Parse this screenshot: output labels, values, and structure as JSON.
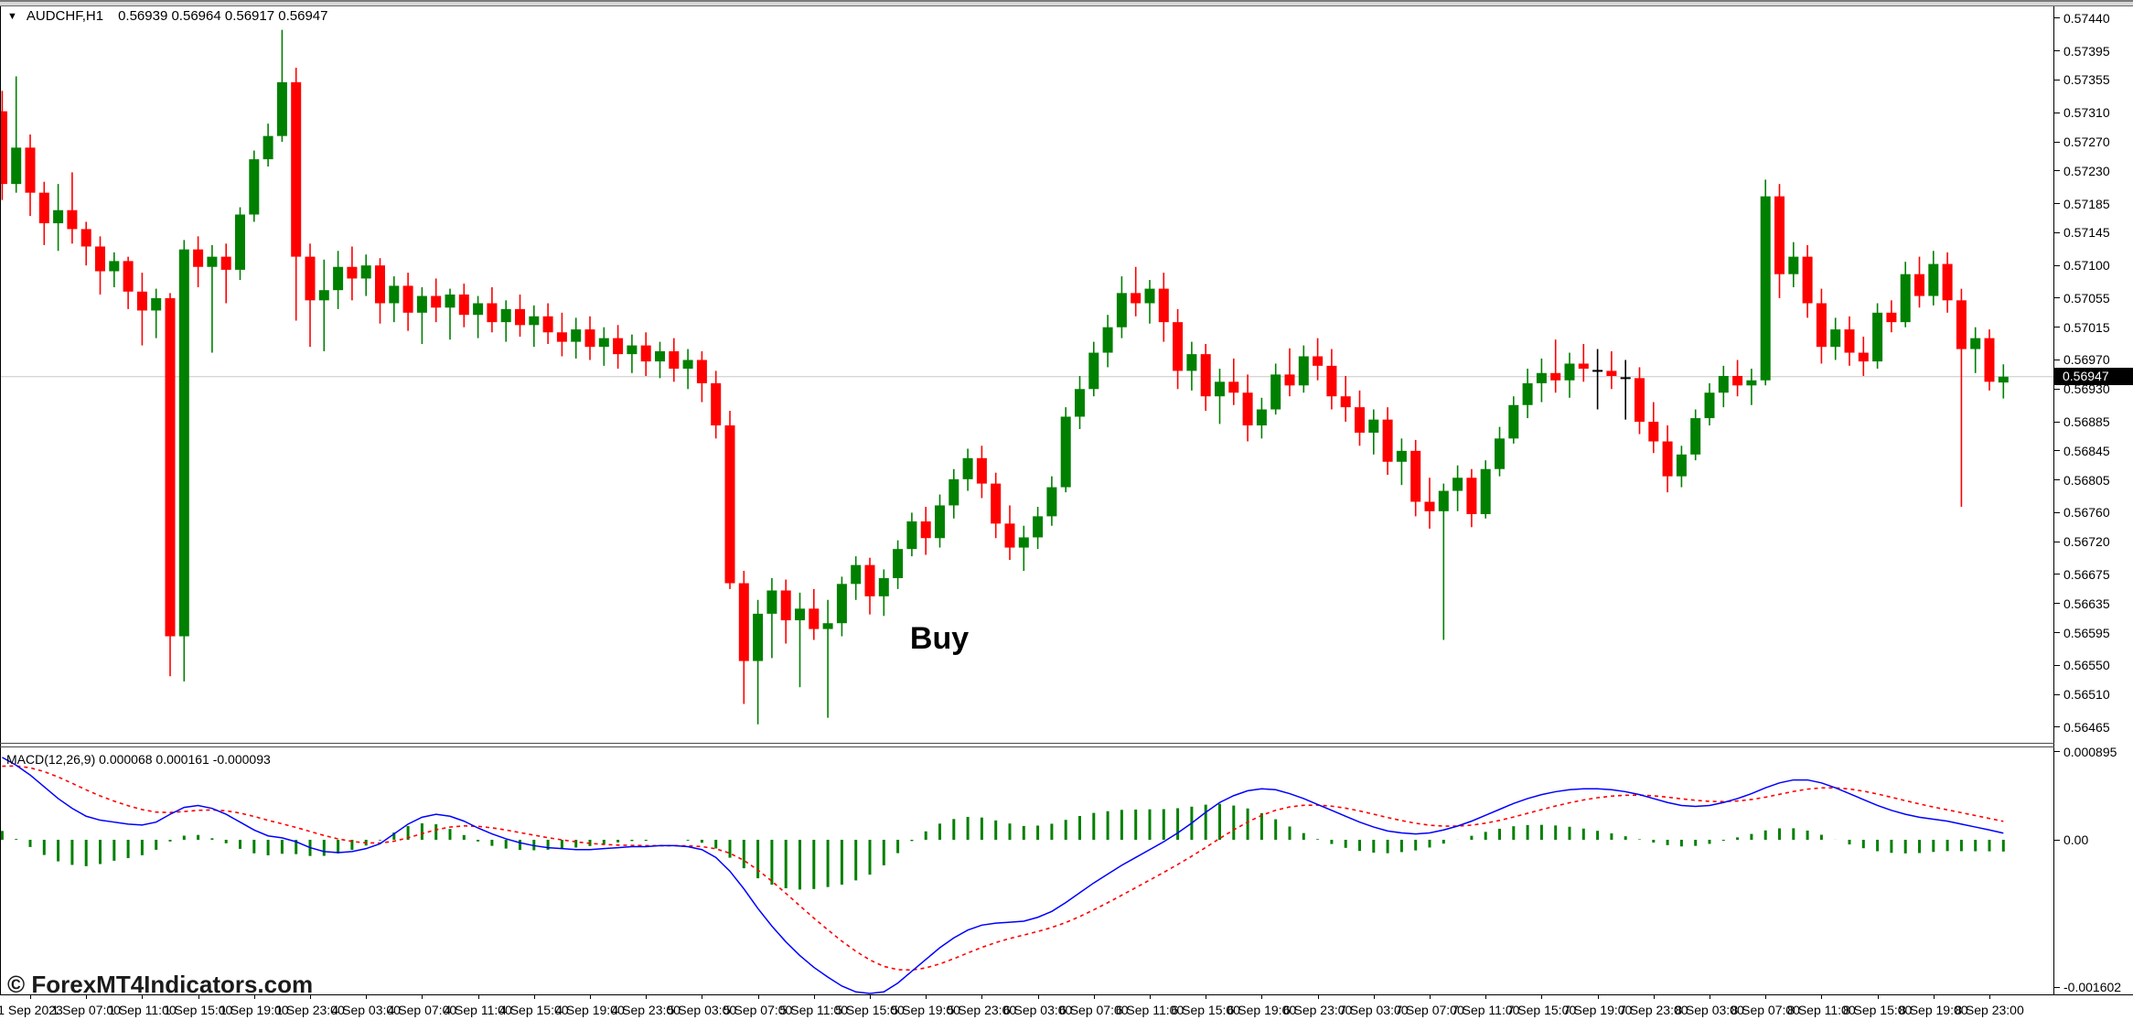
{
  "window": {
    "dropdown_icon": "▼",
    "title_symbol": "AUDCHF,H1",
    "title_ohlc": "0.56939 0.56964 0.56917 0.56947"
  },
  "annotation": {
    "text": "Buy"
  },
  "watermark": {
    "text": "© ForexMT4Indicators.com"
  },
  "colors": {
    "bull": "#008000",
    "bear": "#FF0000",
    "doji_bar": "#000000",
    "macd_line": "#0000FF",
    "signal_line": "#FF0000",
    "histogram": "#008000",
    "current_price_line": "#C8C8C8",
    "axis_text": "#000000",
    "current_price_bg": "#000000",
    "current_price_fg": "#FFFFFF"
  },
  "chart_data": {
    "type": "candlestick",
    "symbol": "AUDCHF",
    "timeframe": "H1",
    "title": "AUDCHF,H1  0.56939 0.56964 0.56917 0.56947",
    "ylim": [
      0.56465,
      0.5744
    ],
    "grid": false,
    "current_price": 0.56947,
    "current_price_label": "0.56947",
    "price_scale": 100000,
    "price_ticks": [
      "0.57440",
      "0.57395",
      "0.57355",
      "0.57310",
      "0.57270",
      "0.57230",
      "0.57185",
      "0.57145",
      "0.57100",
      "0.57055",
      "0.57015",
      "0.56970",
      "0.56930",
      "0.56885",
      "0.56845",
      "0.56805",
      "0.56760",
      "0.56720",
      "0.56675",
      "0.56635",
      "0.56595",
      "0.56550",
      "0.56510",
      "0.56465"
    ],
    "time_labels": [
      "1 Sep 2023",
      "1 Sep 07:00",
      "1 Sep 11:00",
      "1 Sep 15:00",
      "1 Sep 19:00",
      "1 Sep 23:00",
      "4 Sep 03:00",
      "4 Sep 07:00",
      "4 Sep 11:00",
      "4 Sep 15:00",
      "4 Sep 19:00",
      "4 Sep 23:00",
      "5 Sep 03:00",
      "5 Sep 07:00",
      "5 Sep 11:00",
      "5 Sep 15:00",
      "5 Sep 19:00",
      "5 Sep 23:00",
      "6 Sep 03:00",
      "6 Sep 07:00",
      "6 Sep 11:00",
      "6 Sep 15:00",
      "6 Sep 19:00",
      "6 Sep 23:00",
      "7 Sep 03:00",
      "7 Sep 07:00",
      "7 Sep 11:00",
      "7 Sep 15:00",
      "7 Sep 19:00",
      "7 Sep 23:00",
      "8 Sep 03:00",
      "8 Sep 07:00",
      "8 Sep 11:00",
      "8 Sep 15:00",
      "8 Sep 19:00",
      "8 Sep 23:00"
    ],
    "first_label_bar_index": 2,
    "label_every_bars": 4,
    "black_bar_indices": [
      114,
      116
    ],
    "buy_annotation_bar_index": 65,
    "bars": [
      [
        57312,
        57340,
        57190,
        57212
      ],
      [
        57212,
        57360,
        57200,
        57262
      ],
      [
        57262,
        57280,
        57168,
        57200
      ],
      [
        57200,
        57215,
        57128,
        57158
      ],
      [
        57158,
        57212,
        57120,
        57176
      ],
      [
        57176,
        57228,
        57130,
        57150
      ],
      [
        57150,
        57160,
        57100,
        57126
      ],
      [
        57126,
        57140,
        57060,
        57092
      ],
      [
        57092,
        57118,
        57070,
        57106
      ],
      [
        57106,
        57112,
        57040,
        57064
      ],
      [
        57064,
        57090,
        56990,
        57038
      ],
      [
        57038,
        57068,
        57000,
        57055
      ],
      [
        57055,
        57062,
        56535,
        56590
      ],
      [
        56590,
        57135,
        56528,
        57122
      ],
      [
        57122,
        57140,
        57070,
        57098
      ],
      [
        57098,
        57128,
        56980,
        57112
      ],
      [
        57112,
        57130,
        57048,
        57094
      ],
      [
        57094,
        57180,
        57080,
        57170
      ],
      [
        57170,
        57258,
        57160,
        57246
      ],
      [
        57246,
        57295,
        57236,
        57278
      ],
      [
        57278,
        57424,
        57270,
        57352
      ],
      [
        57352,
        57372,
        57024,
        57112
      ],
      [
        57112,
        57130,
        56988,
        57052
      ],
      [
        57052,
        57108,
        56982,
        57066
      ],
      [
        57066,
        57120,
        57040,
        57098
      ],
      [
        57098,
        57126,
        57052,
        57082
      ],
      [
        57082,
        57115,
        57058,
        57100
      ],
      [
        57100,
        57110,
        57020,
        57048
      ],
      [
        57048,
        57085,
        57022,
        57072
      ],
      [
        57072,
        57090,
        57010,
        57035
      ],
      [
        57035,
        57070,
        56992,
        57058
      ],
      [
        57058,
        57082,
        57022,
        57042
      ],
      [
        57042,
        57068,
        56998,
        57060
      ],
      [
        57060,
        57075,
        57015,
        57032
      ],
      [
        57032,
        57058,
        57000,
        57048
      ],
      [
        57048,
        57070,
        57008,
        57022
      ],
      [
        57022,
        57052,
        56995,
        57040
      ],
      [
        57040,
        57060,
        57002,
        57018
      ],
      [
        57018,
        57045,
        56988,
        57030
      ],
      [
        57030,
        57048,
        56992,
        57008
      ],
      [
        57008,
        57035,
        56975,
        56995
      ],
      [
        56995,
        57028,
        56972,
        57012
      ],
      [
        57012,
        57030,
        56970,
        56988
      ],
      [
        56988,
        57015,
        56962,
        57000
      ],
      [
        57000,
        57018,
        56958,
        56978
      ],
      [
        56978,
        57005,
        56952,
        56990
      ],
      [
        56990,
        57008,
        56948,
        56968
      ],
      [
        56968,
        56995,
        56945,
        56982
      ],
      [
        56982,
        57000,
        56940,
        56958
      ],
      [
        56958,
        56985,
        56930,
        56970
      ],
      [
        56970,
        56982,
        56912,
        56938
      ],
      [
        56938,
        56955,
        56862,
        56880
      ],
      [
        56880,
        56900,
        56655,
        56663
      ],
      [
        56663,
        56680,
        56497,
        56556
      ],
      [
        56556,
        56640,
        56469,
        56621
      ],
      [
        56621,
        56670,
        56560,
        56653
      ],
      [
        56653,
        56668,
        56580,
        56612
      ],
      [
        56612,
        56650,
        56520,
        56628
      ],
      [
        56628,
        56655,
        56585,
        56600
      ],
      [
        56600,
        56640,
        56478,
        56608
      ],
      [
        56608,
        56672,
        56590,
        56662
      ],
      [
        56662,
        56700,
        56640,
        56688
      ],
      [
        56688,
        56698,
        56620,
        56645
      ],
      [
        56645,
        56682,
        56618,
        56670
      ],
      [
        56670,
        56722,
        56655,
        56710
      ],
      [
        56710,
        56760,
        56700,
        56748
      ],
      [
        56748,
        56768,
        56702,
        56725
      ],
      [
        56725,
        56785,
        56712,
        56770
      ],
      [
        56770,
        56820,
        56752,
        56806
      ],
      [
        56806,
        56848,
        56790,
        56835
      ],
      [
        56835,
        56852,
        56780,
        56800
      ],
      [
        56800,
        56815,
        56725,
        56745
      ],
      [
        56745,
        56770,
        56695,
        56712
      ],
      [
        56712,
        56742,
        56680,
        56726
      ],
      [
        56726,
        56768,
        56710,
        56755
      ],
      [
        56755,
        56810,
        56742,
        56795
      ],
      [
        56795,
        56905,
        56788,
        56892
      ],
      [
        56892,
        56948,
        56875,
        56930
      ],
      [
        56930,
        56995,
        56920,
        56980
      ],
      [
        56980,
        57032,
        56960,
        57015
      ],
      [
        57015,
        57085,
        57000,
        57062
      ],
      [
        57062,
        57098,
        57030,
        57048
      ],
      [
        57048,
        57080,
        57020,
        57068
      ],
      [
        57068,
        57090,
        56995,
        57022
      ],
      [
        57022,
        57040,
        56930,
        56955
      ],
      [
        56955,
        56995,
        56928,
        56978
      ],
      [
        56978,
        56992,
        56900,
        56920
      ],
      [
        56920,
        56958,
        56882,
        56940
      ],
      [
        56940,
        56972,
        56908,
        56925
      ],
      [
        56925,
        56950,
        56858,
        56880
      ],
      [
        56880,
        56918,
        56862,
        56902
      ],
      [
        56902,
        56965,
        56895,
        56950
      ],
      [
        56950,
        56986,
        56920,
        56935
      ],
      [
        56935,
        56990,
        56925,
        56975
      ],
      [
        56975,
        57000,
        56942,
        56962
      ],
      [
        56962,
        56985,
        56902,
        56920
      ],
      [
        56920,
        56948,
        56885,
        56905
      ],
      [
        56905,
        56928,
        56852,
        56870
      ],
      [
        56870,
        56902,
        56840,
        56888
      ],
      [
        56888,
        56905,
        56812,
        56830
      ],
      [
        56830,
        56862,
        56798,
        56845
      ],
      [
        56845,
        56860,
        56755,
        56775
      ],
      [
        56775,
        56808,
        56738,
        56762
      ],
      [
        56762,
        56800,
        56585,
        56790
      ],
      [
        56790,
        56825,
        56762,
        56808
      ],
      [
        56808,
        56820,
        56740,
        56758
      ],
      [
        56758,
        56832,
        56752,
        56820
      ],
      [
        56820,
        56878,
        56810,
        56862
      ],
      [
        56862,
        56920,
        56855,
        56908
      ],
      [
        56908,
        56958,
        56890,
        56938
      ],
      [
        56938,
        56972,
        56912,
        56952
      ],
      [
        56952,
        56998,
        56925,
        56942
      ],
      [
        56942,
        56980,
        56918,
        56965
      ],
      [
        56965,
        56992,
        56940,
        56958
      ],
      [
        56958,
        56985,
        56902,
        56955
      ],
      [
        56955,
        56982,
        56930,
        56948
      ],
      [
        56948,
        56970,
        56888,
        56945
      ],
      [
        56945,
        56960,
        56868,
        56885
      ],
      [
        56885,
        56912,
        56842,
        56858
      ],
      [
        56858,
        56880,
        56788,
        56810
      ],
      [
        56810,
        56852,
        56795,
        56840
      ],
      [
        56840,
        56902,
        56832,
        56890
      ],
      [
        56890,
        56938,
        56880,
        56925
      ],
      [
        56925,
        56962,
        56905,
        56948
      ],
      [
        56948,
        56970,
        56920,
        56935
      ],
      [
        56935,
        56958,
        56908,
        56942
      ],
      [
        56942,
        57218,
        56935,
        57195
      ],
      [
        57195,
        57212,
        57055,
        57088
      ],
      [
        57088,
        57132,
        57070,
        57112
      ],
      [
        57112,
        57128,
        57028,
        57048
      ],
      [
        57048,
        57068,
        56965,
        56988
      ],
      [
        56988,
        57028,
        56970,
        57012
      ],
      [
        57012,
        57030,
        56962,
        56980
      ],
      [
        56980,
        57002,
        56948,
        56968
      ],
      [
        56968,
        57048,
        56958,
        57035
      ],
      [
        57035,
        57052,
        57008,
        57022
      ],
      [
        57022,
        57105,
        57015,
        57088
      ],
      [
        57088,
        57112,
        57042,
        57058
      ],
      [
        57058,
        57120,
        57045,
        57102
      ],
      [
        57102,
        57118,
        57035,
        57052
      ],
      [
        57052,
        57068,
        56768,
        56985
      ],
      [
        56985,
        57015,
        56952,
        57000
      ],
      [
        57000,
        57012,
        56928,
        56940
      ],
      [
        56939,
        56964,
        56917,
        56947
      ]
    ],
    "indicator": {
      "name": "MACD",
      "params": [
        12,
        26,
        9
      ],
      "values_label": "MACD(12,26,9) 0.000068 0.000161 -0.000093",
      "top_label": "0.000895",
      "zero_label": "0.00",
      "bottom_label": "-0.001602",
      "ylim": [
        -0.001602,
        0.000895
      ],
      "macd_unit": 0.0001,
      "signal_period": 9,
      "signal_seed_offset": -0.9,
      "macd": [
        8.4,
        7.6,
        6.6,
        5.4,
        4.2,
        3.2,
        2.4,
        2.0,
        1.8,
        1.6,
        1.5,
        1.8,
        2.6,
        3.3,
        3.5,
        3.2,
        2.6,
        1.8,
        1.0,
        0.4,
        0.2,
        -0.2,
        -0.8,
        -1.2,
        -1.3,
        -1.2,
        -0.9,
        -0.4,
        0.6,
        1.6,
        2.3,
        2.6,
        2.4,
        1.9,
        1.2,
        0.6,
        0.1,
        -0.3,
        -0.6,
        -0.8,
        -0.9,
        -1.0,
        -1.0,
        -0.9,
        -0.8,
        -0.7,
        -0.7,
        -0.6,
        -0.6,
        -0.7,
        -1.0,
        -1.8,
        -3.2,
        -5.0,
        -7.0,
        -8.8,
        -10.4,
        -11.8,
        -13.0,
        -14.0,
        -14.9,
        -15.5,
        -15.8,
        -15.5,
        -14.6,
        -13.4,
        -12.2,
        -11.0,
        -10.0,
        -9.2,
        -8.7,
        -8.5,
        -8.4,
        -8.3,
        -7.9,
        -7.3,
        -6.4,
        -5.4,
        -4.4,
        -3.5,
        -2.6,
        -1.8,
        -1.0,
        -0.2,
        0.7,
        1.7,
        2.8,
        3.8,
        4.5,
        5.0,
        5.2,
        5.1,
        4.7,
        4.2,
        3.6,
        3.0,
        2.4,
        1.8,
        1.3,
        0.9,
        0.7,
        0.6,
        0.7,
        1.0,
        1.4,
        1.9,
        2.5,
        3.1,
        3.7,
        4.2,
        4.6,
        4.9,
        5.1,
        5.2,
        5.2,
        5.1,
        4.9,
        4.6,
        4.2,
        3.8,
        3.5,
        3.4,
        3.5,
        3.8,
        4.2,
        4.7,
        5.3,
        5.8,
        6.1,
        6.1,
        5.8,
        5.3,
        4.7,
        4.1,
        3.5,
        3.0,
        2.6,
        2.3,
        2.1,
        1.9,
        1.6,
        1.3,
        1.0,
        0.68
      ]
    }
  }
}
